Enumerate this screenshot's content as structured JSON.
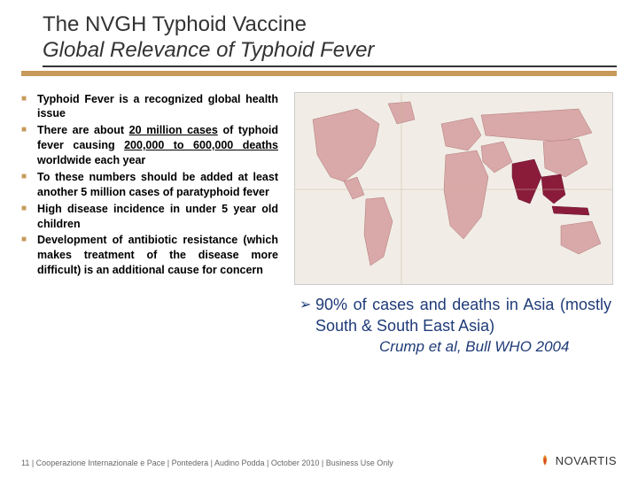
{
  "title": {
    "line1": "The NVGH Typhoid Vaccine",
    "line2": "Global Relevance of Typhoid Fever"
  },
  "colors": {
    "accent": "#c79a5a",
    "title_underline": "#333333",
    "callout_text": "#1f3b78",
    "map_bg": "#f1ede6",
    "map_land_light": "#d9a8a8",
    "map_land_dark": "#8a1c3a"
  },
  "bullets": [
    {
      "html": "Typhoid Fever is a recognized global health issue"
    },
    {
      "html": "There are about <span class=\"u\">20 million cases</span> of typhoid fever causing <span class=\"u\">200,000 to 600,000 deaths</span> worldwide each year"
    },
    {
      "html": "To these numbers should be added at least another 5 million cases of paratyphoid fever"
    },
    {
      "html": "High disease incidence in under 5 year old children"
    },
    {
      "html": "Development of antibiotic resistance (which makes treatment of the disease more difficult) is an additional cause for concern"
    }
  ],
  "callout": {
    "main": "90% of cases and deaths in Asia (mostly South & South East Asia)",
    "cite": "Crump et al, Bull WHO 2004"
  },
  "footer": {
    "text": "11 | Cooperazione Internazionale e Pace | Pontedera | Audino Podda | October 2010 | Business Use Only",
    "brand": "NOVARTIS"
  },
  "map": {
    "type": "choropleth-world",
    "highlight_regions": [
      "South Asia",
      "South East Asia"
    ],
    "base_fill": "#d9a8a8",
    "highlight_fill": "#8a1c3a",
    "ocean_fill": "#f1ede6",
    "border_color": "#b07a7a"
  }
}
